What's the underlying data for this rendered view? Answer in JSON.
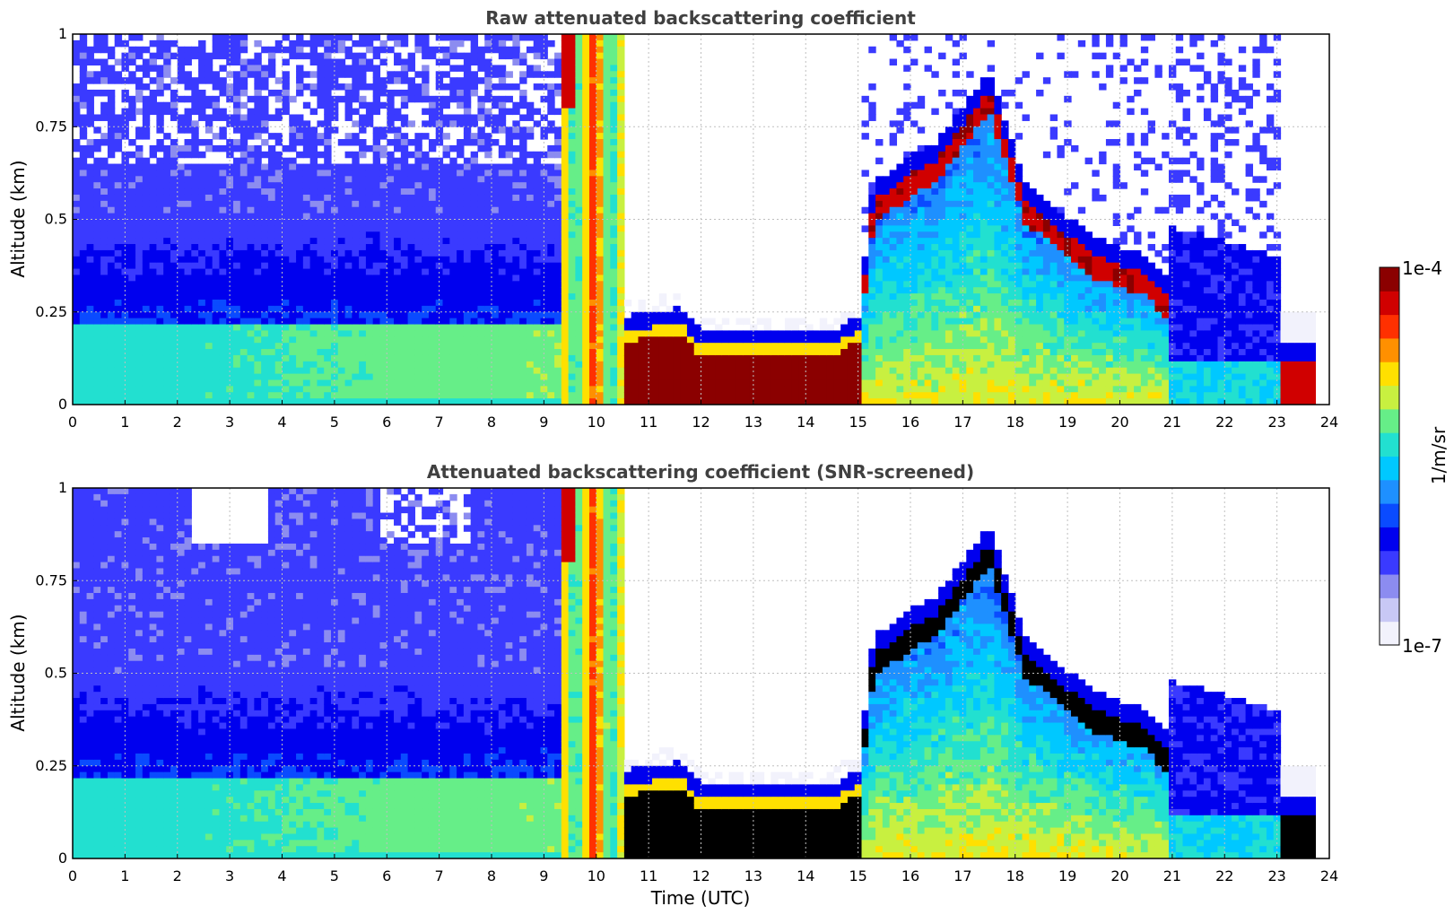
{
  "colors": {
    "title": "#404040",
    "axis": "#000000",
    "grid": "#bfbfbf",
    "colormap": [
      "#f2f2fc",
      "#c8c8f5",
      "#8c8cf0",
      "#3a3aff",
      "#0000ee",
      "#0a4bff",
      "#1e90ff",
      "#00c8ff",
      "#22e0d0",
      "#66ee88",
      "#c8f040",
      "#ffe000",
      "#ff9000",
      "#ff3000",
      "#d00000",
      "#8b0000"
    ]
  },
  "chart_data": [
    {
      "type": "heatmap",
      "title": "Raw attenuated backscattering coefficient",
      "xlabel": "",
      "ylabel": "Altitude (km)",
      "xlim": [
        0,
        24
      ],
      "ylim": [
        0,
        1
      ],
      "xticks": [
        "0",
        "1",
        "2",
        "3",
        "4",
        "5",
        "6",
        "7",
        "8",
        "9",
        "10",
        "11",
        "12",
        "13",
        "14",
        "15",
        "16",
        "17",
        "18",
        "19",
        "20",
        "21",
        "22",
        "23",
        "24"
      ],
      "yticks": [
        "0",
        "0.25",
        "0.5",
        "0.75",
        "1"
      ],
      "grid": true,
      "cloud_top_km": [
        {
          "x": 0.0,
          "y": 1.0
        },
        {
          "x": 9.2,
          "y": 1.0
        },
        {
          "x": 10.5,
          "y": 1.0
        },
        {
          "x": 10.6,
          "y": 0.2
        },
        {
          "x": 11.6,
          "y": 0.22
        },
        {
          "x": 12.0,
          "y": 0.16
        },
        {
          "x": 14.5,
          "y": 0.16
        },
        {
          "x": 15.0,
          "y": 0.2
        },
        {
          "x": 15.3,
          "y": 0.55
        },
        {
          "x": 16.0,
          "y": 0.62
        },
        {
          "x": 16.5,
          "y": 0.66
        },
        {
          "x": 17.5,
          "y": 0.85
        },
        {
          "x": 18.2,
          "y": 0.55
        },
        {
          "x": 19.5,
          "y": 0.4
        },
        {
          "x": 20.5,
          "y": 0.35
        },
        {
          "x": 21.0,
          "y": 0.28
        },
        {
          "x": 23.0,
          "y": 0.2
        },
        {
          "x": 23.7,
          "y": 0.16
        }
      ]
    },
    {
      "type": "heatmap",
      "title": "Attenuated backscattering coefficient (SNR-screened)",
      "xlabel": "Time (UTC)",
      "ylabel": "Altitude (km)",
      "xlim": [
        0,
        24
      ],
      "ylim": [
        0,
        1
      ],
      "xticks": [
        "0",
        "1",
        "2",
        "3",
        "4",
        "5",
        "6",
        "7",
        "8",
        "9",
        "10",
        "11",
        "12",
        "13",
        "14",
        "15",
        "16",
        "17",
        "18",
        "19",
        "20",
        "21",
        "22",
        "23",
        "24"
      ],
      "yticks": [
        "0",
        "0.25",
        "0.5",
        "0.75",
        "1"
      ],
      "grid": true
    }
  ],
  "colorbar": {
    "label": "1/m/sr",
    "max_label": "1e-4",
    "min_label": "1e-7",
    "scale": "log"
  }
}
